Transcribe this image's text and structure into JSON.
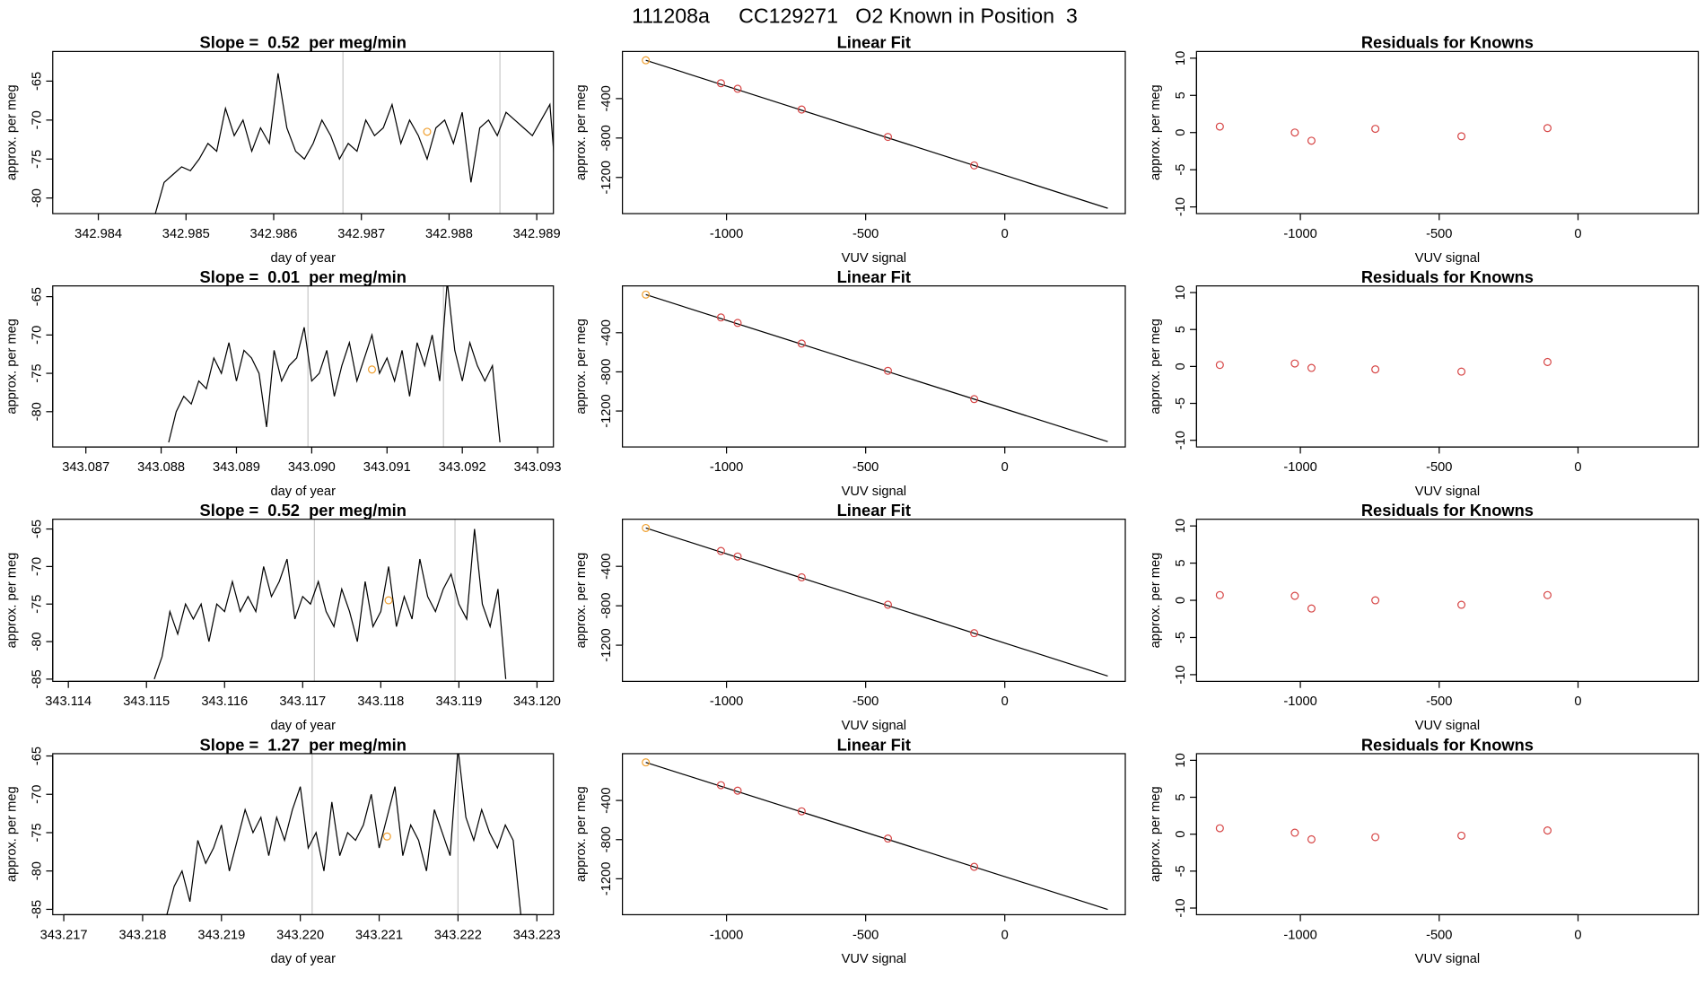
{
  "title": "111208a     CC129271   O2 Known in Position  3",
  "chart_data": [
    {
      "type": "line",
      "title": "Slope =  0.52  per meg/min",
      "x_label": "day of year",
      "y_label": "approx. per meg",
      "x": [
        342.98465,
        342.98475,
        342.98485,
        342.98495,
        342.98505,
        342.98515,
        342.98525,
        342.98535,
        342.98545,
        342.98555,
        342.98565,
        342.98575,
        342.98585,
        342.98595,
        342.98605,
        342.98615,
        342.98625,
        342.98635,
        342.98645,
        342.98655,
        342.98665,
        342.98675,
        342.98685,
        342.98695,
        342.98705,
        342.98715,
        342.98725,
        342.98735,
        342.98745,
        342.98755,
        342.98765,
        342.98775,
        342.98785,
        342.98795,
        342.98805,
        342.98815,
        342.98825,
        342.98835,
        342.98845,
        342.98855,
        342.98865,
        342.98875,
        342.98885,
        342.98895,
        342.98905,
        342.98915,
        342.98925
      ],
      "series": [
        {
          "color": "#000000",
          "values": [
            -82,
            -78,
            -77,
            -76,
            -76.5,
            -75,
            -73,
            -74,
            -68.5,
            -72,
            -70,
            -74,
            -71,
            -73,
            -64,
            -71,
            -74,
            -75,
            -73,
            -70,
            -72,
            -75,
            -73,
            -74,
            -70,
            -72,
            -71,
            -68,
            -73,
            -70,
            -72,
            -75,
            -71,
            -70,
            -73,
            -69,
            -78,
            -71,
            -70,
            -72,
            -69,
            -70,
            -71,
            -72,
            -70,
            -68,
            -82
          ]
        }
      ],
      "known_point": {
        "x": 342.98775,
        "y": -71.5,
        "color": "#f0a030"
      },
      "vlines": [
        342.98679,
        342.98858
      ],
      "vline_color": "#c8c8c8",
      "xlim": [
        342.98348,
        342.98919
      ],
      "ylim": [
        -82.0,
        -61.2
      ],
      "xticks": [
        342.984,
        342.985,
        342.986,
        342.987,
        342.988,
        342.989
      ],
      "yticks": [
        -80,
        -75,
        -70,
        -65
      ]
    },
    {
      "type": "scatter",
      "title": "Linear Fit",
      "x_label": "VUV signal",
      "y_label": "approx. per meg",
      "x": [
        -1290,
        -1020,
        -960,
        -730,
        -420,
        -110
      ],
      "values": [
        -11,
        -244,
        -300,
        -511,
        -789,
        -1078
      ],
      "colors": [
        "#f0a030",
        "#d64545",
        "#d64545",
        "#d64545",
        "#d64545",
        "#d64545"
      ],
      "fit_line": {
        "x": [
          -1290,
          370
        ],
        "y": [
          -11,
          -1513
        ],
        "color": "#000000"
      },
      "xlim": [
        -1374,
        433
      ],
      "ylim": [
        -1567,
        78
      ],
      "xticks": [
        -1000,
        -500,
        0
      ],
      "yticks": [
        -1200,
        -800,
        -400
      ]
    },
    {
      "type": "scatter",
      "title": "Residuals for Knowns",
      "x_label": "VUV signal",
      "y_label": "approx. per meg",
      "x": [
        -1290,
        -1020,
        -960,
        -730,
        -420,
        -110
      ],
      "values": [
        0.8,
        0,
        -1.1,
        0.5,
        -0.5,
        0.6
      ],
      "color": "#d64545",
      "xlim": [
        -1374,
        433
      ],
      "ylim": [
        -10.9,
        10.9
      ],
      "xticks": [
        -1000,
        -500,
        0
      ],
      "yticks": [
        -10,
        -5,
        0,
        5,
        10
      ]
    },
    {
      "type": "line",
      "title": "Slope =  0.01  per meg/min",
      "x_label": "day of year",
      "y_label": "approx. per meg",
      "x": [
        343.0881,
        343.0882,
        343.0883,
        343.0884,
        343.0885,
        343.0886,
        343.0887,
        343.0888,
        343.0889,
        343.089,
        343.0891,
        343.0892,
        343.0893,
        343.0894,
        343.0895,
        343.0896,
        343.0897,
        343.0898,
        343.0899,
        343.09,
        343.0901,
        343.0902,
        343.0903,
        343.0904,
        343.0905,
        343.0906,
        343.0907,
        343.0908,
        343.0909,
        343.091,
        343.0911,
        343.0912,
        343.0913,
        343.0914,
        343.0915,
        343.0916,
        343.0917,
        343.0918,
        343.0919,
        343.092,
        343.0921,
        343.0922,
        343.0923,
        343.0924,
        343.0925
      ],
      "series": [
        {
          "color": "#000000",
          "values": [
            -84,
            -80,
            -78,
            -79,
            -76,
            -77,
            -73,
            -75,
            -71,
            -76,
            -72,
            -73,
            -75,
            -82,
            -72,
            -76,
            -74,
            -73,
            -69,
            -76,
            -75,
            -72,
            -78,
            -74,
            -71,
            -76,
            -73,
            -70,
            -75,
            -73,
            -76,
            -72,
            -78,
            -71,
            -74,
            -70,
            -76,
            -63,
            -72,
            -76,
            -71,
            -74,
            -76,
            -74,
            -84
          ]
        }
      ],
      "known_point": {
        "x": 343.0908,
        "y": -74.5,
        "color": "#f0a030"
      },
      "vlines": [
        343.08995,
        343.09175
      ],
      "vline_color": "#c8c8c8",
      "xlim": [
        343.08656,
        343.09321
      ],
      "ylim": [
        -84.6,
        -63.6
      ],
      "xticks": [
        343.087,
        343.088,
        343.089,
        {
          "value": 343.09,
          "label": "343.090"
        },
        343.091,
        343.092,
        343.093
      ],
      "yticks": [
        -80,
        -75,
        -70,
        -65
      ]
    },
    {
      "type": "scatter",
      "title": "Linear Fit",
      "x_label": "VUV signal",
      "y_label": "approx. per meg",
      "x": [
        -1290,
        -1020,
        -960,
        -730,
        -420,
        -110
      ],
      "values": [
        -11,
        -244,
        -300,
        -511,
        -789,
        -1078
      ],
      "colors": [
        "#f0a030",
        "#d64545",
        "#d64545",
        "#d64545",
        "#d64545",
        "#d64545"
      ],
      "fit_line": {
        "x": [
          -1290,
          370
        ],
        "y": [
          -11,
          -1513
        ],
        "color": "#000000"
      },
      "xlim": [
        -1374,
        433
      ],
      "ylim": [
        -1567,
        78
      ],
      "xticks": [
        -1000,
        -500,
        0
      ],
      "yticks": [
        -1200,
        -800,
        -400
      ]
    },
    {
      "type": "scatter",
      "title": "Residuals for Knowns",
      "x_label": "VUV signal",
      "y_label": "approx. per meg",
      "x": [
        -1290,
        -1020,
        -960,
        -730,
        -420,
        -110
      ],
      "values": [
        0.2,
        0.4,
        -0.2,
        -0.4,
        -0.7,
        0.6
      ],
      "color": "#d64545",
      "xlim": [
        -1374,
        433
      ],
      "ylim": [
        -10.9,
        10.9
      ],
      "xticks": [
        -1000,
        -500,
        0
      ],
      "yticks": [
        -10,
        -5,
        0,
        5,
        10
      ]
    },
    {
      "type": "line",
      "title": "Slope =  0.52  per meg/min",
      "x_label": "day of year",
      "y_label": "approx. per meg",
      "x": [
        343.1151,
        343.1152,
        343.1153,
        343.1154,
        343.1155,
        343.1156,
        343.1157,
        343.1158,
        343.1159,
        343.116,
        343.1161,
        343.1162,
        343.1163,
        343.1164,
        343.1165,
        343.1166,
        343.1167,
        343.1168,
        343.1169,
        343.117,
        343.1171,
        343.1172,
        343.1173,
        343.1174,
        343.1175,
        343.1176,
        343.1177,
        343.1178,
        343.1179,
        343.118,
        343.1181,
        343.1182,
        343.1183,
        343.1184,
        343.1185,
        343.1186,
        343.1187,
        343.1188,
        343.1189,
        343.119,
        343.1191,
        343.1192,
        343.1193,
        343.1194,
        343.1195,
        343.1196
      ],
      "series": [
        {
          "color": "#000000",
          "values": [
            -85,
            -82,
            -76,
            -79,
            -75,
            -77,
            -75,
            -80,
            -75,
            -76,
            -72,
            -76,
            -74,
            -76,
            -70,
            -74,
            -72,
            -69,
            -77,
            -74,
            -75,
            -72,
            -76,
            -78,
            -73,
            -76,
            -80,
            -72,
            -78,
            -76,
            -70,
            -78,
            -74,
            -77,
            -69,
            -74,
            -76,
            -73,
            -71,
            -75,
            -77,
            -65,
            -75,
            -78,
            -73,
            -85
          ]
        }
      ],
      "known_point": {
        "x": 343.1181,
        "y": -74.5,
        "color": "#f0a030"
      },
      "vlines": [
        343.11715,
        343.11895
      ],
      "vline_color": "#c8c8c8",
      "xlim": [
        343.1138,
        343.12021
      ],
      "ylim": [
        -85.3,
        -63.7
      ],
      "xticks": [
        343.114,
        343.115,
        343.116,
        343.117,
        343.118,
        343.119,
        {
          "value": 343.12,
          "label": "343.120"
        }
      ],
      "yticks": [
        -85,
        -80,
        -75,
        -70,
        -65
      ]
    },
    {
      "type": "scatter",
      "title": "Linear Fit",
      "x_label": "VUV signal",
      "y_label": "approx. per meg",
      "x": [
        -1290,
        -1020,
        -960,
        -730,
        -420,
        -110
      ],
      "values": [
        -11,
        -244,
        -300,
        -511,
        -789,
        -1078
      ],
      "colors": [
        "#f0a030",
        "#d64545",
        "#d64545",
        "#d64545",
        "#d64545",
        "#d64545"
      ],
      "fit_line": {
        "x": [
          -1290,
          370
        ],
        "y": [
          -11,
          -1513
        ],
        "color": "#000000"
      },
      "xlim": [
        -1374,
        433
      ],
      "ylim": [
        -1567,
        78
      ],
      "xticks": [
        -1000,
        -500,
        0
      ],
      "yticks": [
        -1200,
        -800,
        -400
      ]
    },
    {
      "type": "scatter",
      "title": "Residuals for Knowns",
      "x_label": "VUV signal",
      "y_label": "approx. per meg",
      "x": [
        -1290,
        -1020,
        -960,
        -730,
        -420,
        -110
      ],
      "values": [
        0.7,
        0.6,
        -1.1,
        0,
        -0.6,
        0.7
      ],
      "color": "#d64545",
      "xlim": [
        -1374,
        433
      ],
      "ylim": [
        -10.9,
        10.9
      ],
      "xticks": [
        -1000,
        -500,
        0
      ],
      "yticks": [
        -10,
        -5,
        0,
        5,
        10
      ]
    },
    {
      "type": "line",
      "title": "Slope =  1.27  per meg/min",
      "x_label": "day of year",
      "y_label": "approx. per meg",
      "x": [
        343.2183,
        343.2184,
        343.2185,
        343.2186,
        343.2187,
        343.2188,
        343.2189,
        343.219,
        343.2191,
        343.2192,
        343.2193,
        343.2194,
        343.2195,
        343.2196,
        343.2197,
        343.2198,
        343.2199,
        343.22,
        343.2201,
        343.2202,
        343.2203,
        343.2204,
        343.2205,
        343.2206,
        343.2207,
        343.2208,
        343.2209,
        343.221,
        343.2211,
        343.2212,
        343.2213,
        343.2214,
        343.2215,
        343.2216,
        343.2217,
        343.2218,
        343.2219,
        343.222,
        343.2221,
        343.2222,
        343.2223,
        343.2224,
        343.2225,
        343.2226,
        343.2227,
        343.2228
      ],
      "series": [
        {
          "color": "#000000",
          "values": [
            -86,
            -82,
            -80,
            -84,
            -76,
            -79,
            -77,
            -74,
            -80,
            -76,
            -72,
            -75,
            -73,
            -78,
            -73,
            -76,
            -72,
            -69,
            -77,
            -75,
            -80,
            -71,
            -78,
            -75,
            -76,
            -74,
            -70,
            -77,
            -73,
            -69,
            -78,
            -74,
            -76,
            -80,
            -72,
            -75,
            -78,
            -64,
            -73,
            -76,
            -72,
            -75,
            -77,
            -74,
            -76,
            -86
          ]
        }
      ],
      "known_point": {
        "x": 343.2211,
        "y": -75.5,
        "color": "#f0a030"
      },
      "vlines": [
        343.22015,
        343.222
      ],
      "vline_color": "#c8c8c8",
      "xlim": [
        343.21686,
        343.22321
      ],
      "ylim": [
        -85.7,
        -64.7
      ],
      "xticks": [
        343.217,
        343.218,
        343.219,
        {
          "value": 343.22,
          "label": "343.220"
        },
        343.221,
        343.222,
        343.223
      ],
      "yticks": [
        -85,
        -80,
        -75,
        -70,
        -65
      ]
    },
    {
      "type": "scatter",
      "title": "Linear Fit",
      "x_label": "VUV signal",
      "y_label": "approx. per meg",
      "x": [
        -1290,
        -1020,
        -960,
        -730,
        -420,
        -110
      ],
      "values": [
        -11,
        -244,
        -300,
        -511,
        -789,
        -1078
      ],
      "colors": [
        "#f0a030",
        "#d64545",
        "#d64545",
        "#d64545",
        "#d64545",
        "#d64545"
      ],
      "fit_line": {
        "x": [
          -1290,
          370
        ],
        "y": [
          -11,
          -1513
        ],
        "color": "#000000"
      },
      "xlim": [
        -1374,
        433
      ],
      "ylim": [
        -1567,
        78
      ],
      "xticks": [
        -1000,
        -500,
        0
      ],
      "yticks": [
        -1200,
        -800,
        -400
      ]
    },
    {
      "type": "scatter",
      "title": "Residuals for Knowns",
      "x_label": "VUV signal",
      "y_label": "approx. per meg",
      "x": [
        -1290,
        -1020,
        -960,
        -730,
        -420,
        -110
      ],
      "values": [
        0.8,
        0.2,
        -0.7,
        -0.4,
        -0.2,
        0.5
      ],
      "color": "#d64545",
      "xlim": [
        -1374,
        433
      ],
      "ylim": [
        -10.9,
        10.9
      ],
      "xticks": [
        -1000,
        -500,
        0
      ],
      "yticks": [
        -10,
        -5,
        0,
        5,
        10
      ]
    }
  ]
}
